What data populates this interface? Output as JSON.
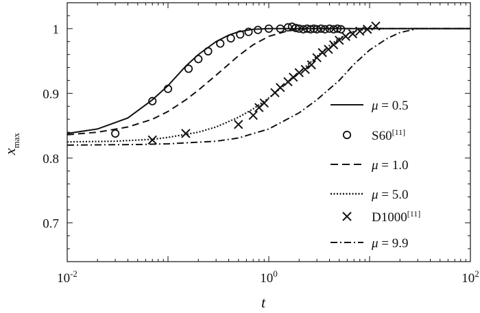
{
  "chart_data": {
    "type": "line",
    "title": "",
    "xlabel": "t",
    "ylabel_main": "x",
    "ylabel_sub": "max",
    "xscale": "log",
    "xlim": [
      0.01,
      100
    ],
    "ylim": [
      0.64,
      1.04
    ],
    "x_ticks": [
      {
        "value": 0.01,
        "base": "10",
        "exp": "-2"
      },
      {
        "value": 1,
        "base": "10",
        "exp": "0"
      },
      {
        "value": 100,
        "base": "10",
        "exp": "2"
      }
    ],
    "y_ticks": [
      {
        "value": 0.7,
        "label": "0.7"
      },
      {
        "value": 0.8,
        "label": "0.8"
      },
      {
        "value": 0.9,
        "label": "0.9"
      },
      {
        "value": 1.0,
        "label": "1"
      }
    ],
    "legend_position": "right",
    "series": [
      {
        "name": "μ = 0.5",
        "name_prefix": "μ",
        "name_suffix": " = 0.5",
        "style": "solid",
        "x": [
          0.01,
          0.02,
          0.04,
          0.07,
          0.1,
          0.15,
          0.2,
          0.3,
          0.4,
          0.5,
          0.7,
          1.0,
          1.5,
          2,
          3,
          5,
          10,
          100
        ],
        "y": [
          0.838,
          0.845,
          0.862,
          0.89,
          0.912,
          0.942,
          0.96,
          0.98,
          0.99,
          0.995,
          0.999,
          1.0,
          1.0,
          1.0,
          1.0,
          1.0,
          1.0,
          1.0
        ]
      },
      {
        "name": "S60[11]",
        "name_main": "S60",
        "name_sup": "[11]",
        "style": "marker-circle",
        "x": [
          0.03,
          0.07,
          0.1,
          0.16,
          0.2,
          0.25,
          0.33,
          0.42,
          0.52,
          0.63,
          0.78,
          1.0,
          1.3,
          1.55,
          1.7,
          1.85,
          2.0,
          2.2,
          2.4,
          2.6,
          2.8,
          3.0,
          3.3,
          3.6,
          4.0,
          4.4,
          4.8,
          5.2
        ],
        "y": [
          0.838,
          0.888,
          0.907,
          0.938,
          0.953,
          0.965,
          0.977,
          0.985,
          0.991,
          0.995,
          0.998,
          1.0,
          1.0,
          1.002,
          1.003,
          1.001,
          1.0,
          0.999,
          1.0,
          0.999,
          1.0,
          0.999,
          1.0,
          0.999,
          1.0,
          0.999,
          1.0,
          0.999
        ]
      },
      {
        "name": "μ = 1.0",
        "name_prefix": "μ",
        "name_suffix": " = 1.0",
        "style": "dashed",
        "x": [
          0.01,
          0.02,
          0.04,
          0.07,
          0.1,
          0.15,
          0.2,
          0.3,
          0.5,
          0.7,
          1.0,
          1.5,
          2.0,
          3.0,
          5,
          10,
          100
        ],
        "y": [
          0.836,
          0.84,
          0.848,
          0.86,
          0.872,
          0.89,
          0.905,
          0.928,
          0.958,
          0.975,
          0.988,
          0.996,
          0.999,
          1.0,
          1.0,
          1.0,
          1.0
        ]
      },
      {
        "name": "μ = 5.0",
        "name_prefix": "μ",
        "name_suffix": " = 5.0",
        "style": "dotted",
        "x": [
          0.01,
          0.03,
          0.07,
          0.1,
          0.2,
          0.3,
          0.5,
          0.7,
          1.0,
          1.5,
          2.0,
          3.0,
          4.0,
          5.0,
          7.0,
          10,
          20,
          100
        ],
        "y": [
          0.825,
          0.826,
          0.829,
          0.832,
          0.84,
          0.848,
          0.863,
          0.876,
          0.893,
          0.915,
          0.932,
          0.957,
          0.974,
          0.985,
          0.996,
          1.0,
          1.0,
          1.0
        ]
      },
      {
        "name": "D1000[11]",
        "name_main": "D1000",
        "name_sup": "[11]",
        "style": "marker-x",
        "x": [
          0.07,
          0.15,
          0.5,
          0.7,
          0.8,
          0.9,
          1.15,
          1.3,
          1.55,
          1.75,
          2.0,
          2.3,
          2.65,
          3.0,
          3.4,
          3.9,
          4.4,
          5.0,
          5.8,
          6.8,
          8.0,
          9.5,
          11.5
        ],
        "y": [
          0.828,
          0.838,
          0.852,
          0.866,
          0.878,
          0.885,
          0.901,
          0.909,
          0.918,
          0.925,
          0.932,
          0.937,
          0.944,
          0.955,
          0.963,
          0.968,
          0.975,
          0.982,
          0.988,
          0.992,
          0.996,
          0.999,
          1.004
        ]
      },
      {
        "name": "μ = 9.9",
        "name_prefix": "μ",
        "name_suffix": " = 9.9",
        "style": "dashdot",
        "x": [
          0.01,
          0.05,
          0.1,
          0.3,
          0.5,
          1.0,
          2.0,
          3.0,
          5.0,
          7.0,
          10,
          15,
          20,
          30,
          100
        ],
        "y": [
          0.82,
          0.821,
          0.822,
          0.826,
          0.831,
          0.845,
          0.87,
          0.89,
          0.92,
          0.945,
          0.967,
          0.985,
          0.994,
          1.0,
          1.0
        ]
      }
    ]
  }
}
